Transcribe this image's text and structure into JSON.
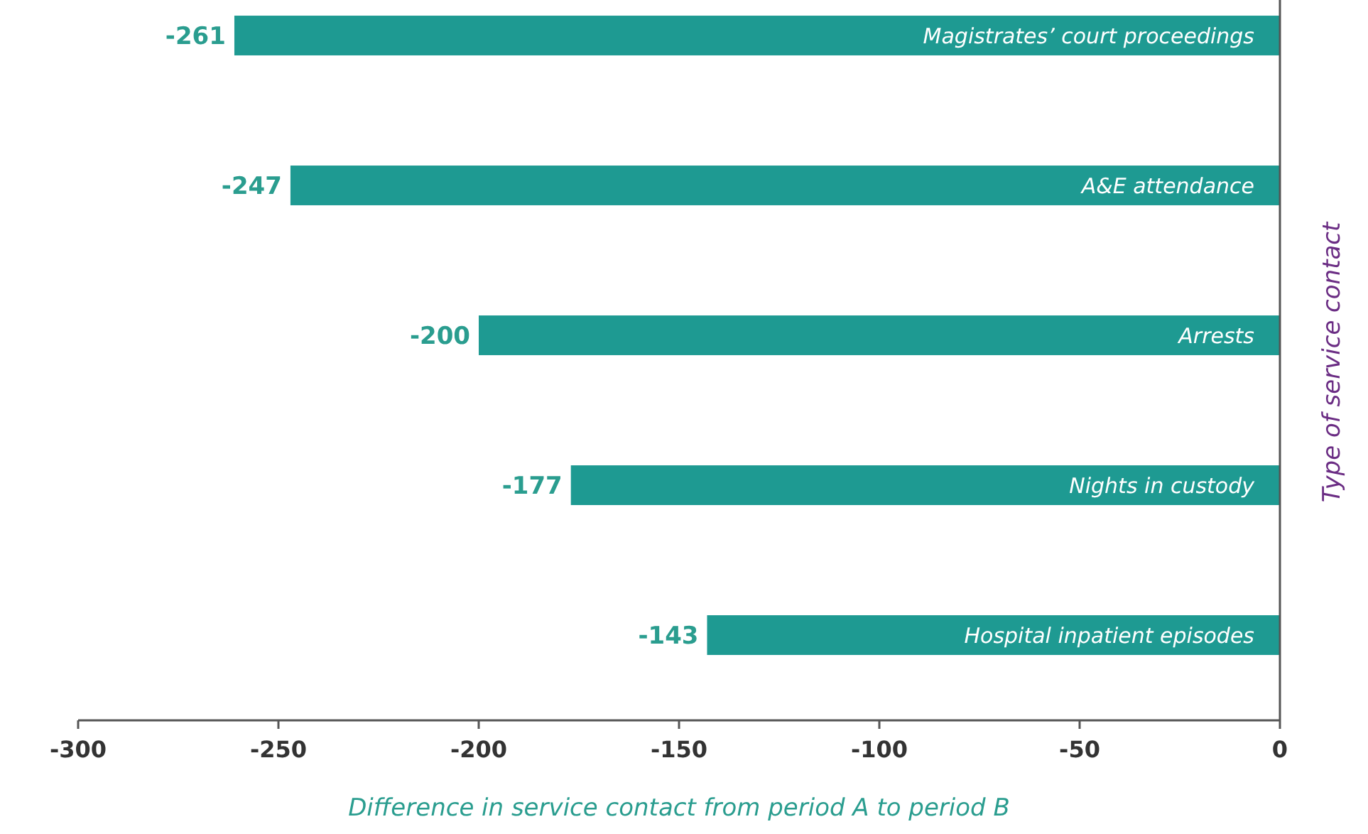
{
  "chart_data": {
    "type": "bar",
    "orientation": "horizontal",
    "xlabel": "Difference in service contact from period A to period B",
    "ylabel": "Type of service contact",
    "categories": [
      "Magistrates’ court proceedings",
      "A&E attendance",
      "Arrests",
      "Nights in custody",
      "Hospital inpatient episodes"
    ],
    "values": [
      -261,
      -247,
      -200,
      -177,
      -143
    ],
    "color": "#1e9a92",
    "data_labels": true,
    "xlim": [
      -300,
      0
    ],
    "xticks": [
      -300,
      -250,
      -200,
      -150,
      -100,
      -50,
      0
    ],
    "grid": false
  }
}
